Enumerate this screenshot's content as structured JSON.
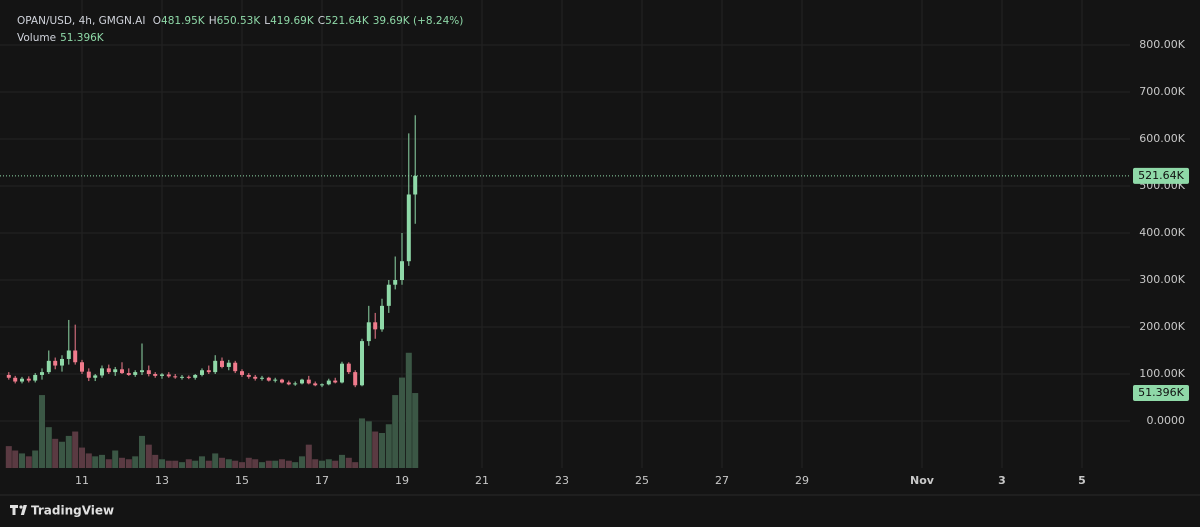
{
  "chart_data": {
    "type": "candlestick",
    "symbol": "OPAN/USD, 4h, GMGN.AI",
    "ohlc_legend": [
      {
        "key": "O",
        "value": "481.95K"
      },
      {
        "key": "H",
        "value": "650.53K"
      },
      {
        "key": "L",
        "value": "419.69K"
      },
      {
        "key": "C",
        "value": "521.64K"
      }
    ],
    "change_label": "39.69K (+8.24%)",
    "volume_title": "Volume",
    "volume_label": "51.396K",
    "last_price_label": "521.64K",
    "brand": "TradingView",
    "up_color": "#8fd9a8",
    "down_color": "#f07b8c",
    "volume_up_color": "#3b5745",
    "volume_down_color": "#5a3a42",
    "grid": true,
    "xlim": [
      8.95,
      37.2
    ],
    "xticks": [
      11,
      13,
      15,
      17,
      19,
      21,
      23,
      25,
      27,
      29,
      {
        "value": 32,
        "label": "Nov"
      },
      {
        "value": 34,
        "label": "3"
      },
      {
        "value": 36,
        "label": "5"
      }
    ],
    "ylim": [
      -100000,
      874500
    ],
    "yticks": [
      {
        "value": 0,
        "label": "0.0000"
      },
      {
        "value": 100000,
        "label": "100.00K"
      },
      {
        "value": 200000,
        "label": "200.00K"
      },
      {
        "value": 300000,
        "label": "300.00K"
      },
      {
        "value": 400000,
        "label": "400.00K"
      },
      {
        "value": 500000,
        "label": "500.00K"
      },
      {
        "value": 600000,
        "label": "600.00K"
      },
      {
        "value": 700000,
        "label": "700.00K"
      },
      {
        "value": 800000,
        "label": "800.00K"
      }
    ],
    "vlim": [
      0,
      314000
    ],
    "candles": {
      "x": [
        9.17,
        9.33,
        9.5,
        9.67,
        9.83,
        10,
        10.17,
        10.33,
        10.5,
        10.67,
        10.83,
        11,
        11.17,
        11.33,
        11.5,
        11.67,
        11.83,
        12,
        12.17,
        12.33,
        12.5,
        12.67,
        12.83,
        13,
        13.17,
        13.33,
        13.5,
        13.67,
        13.83,
        14,
        14.17,
        14.33,
        14.5,
        14.67,
        14.83,
        15,
        15.17,
        15.33,
        15.5,
        15.67,
        15.83,
        16,
        16.17,
        16.33,
        16.5,
        16.67,
        16.83,
        17,
        17.17,
        17.33,
        17.5,
        17.67,
        17.83,
        18,
        18.17,
        18.33,
        18.5,
        18.67,
        18.83,
        19,
        19.17,
        19.33
      ],
      "open": [
        98000,
        92000,
        84000,
        90000,
        86000,
        98000,
        104000,
        128000,
        118000,
        132000,
        150000,
        125000,
        105000,
        92000,
        97000,
        112000,
        104000,
        110000,
        102000,
        98000,
        104000,
        108000,
        100000,
        96000,
        99000,
        95000,
        93000,
        94000,
        92000,
        98000,
        108000,
        104000,
        128000,
        115000,
        124000,
        106000,
        98000,
        94000,
        90000,
        92000,
        86000,
        88000,
        82000,
        78000,
        80000,
        88000,
        80000,
        76000,
        78000,
        86000,
        82000,
        122000,
        104000,
        76000,
        170000,
        210000,
        195000,
        245000,
        290000,
        300000,
        340000,
        481950
      ],
      "high": [
        104000,
        96000,
        94000,
        95000,
        102000,
        112000,
        150000,
        135000,
        140000,
        215000,
        205000,
        130000,
        112000,
        100000,
        118000,
        120000,
        115000,
        125000,
        112000,
        108000,
        165000,
        118000,
        104000,
        102000,
        104000,
        100000,
        98000,
        97000,
        100000,
        112000,
        118000,
        140000,
        135000,
        130000,
        128000,
        110000,
        102000,
        98000,
        96000,
        94000,
        92000,
        90000,
        86000,
        84000,
        90000,
        96000,
        84000,
        80000,
        90000,
        92000,
        126000,
        125000,
        108000,
        175000,
        245000,
        230000,
        260000,
        300000,
        350000,
        400000,
        612000,
        650530
      ],
      "low": [
        88000,
        80000,
        80000,
        82000,
        82000,
        88000,
        100000,
        110000,
        105000,
        120000,
        120000,
        100000,
        85000,
        85000,
        92000,
        100000,
        96000,
        100000,
        96000,
        94000,
        98000,
        95000,
        92000,
        90000,
        92000,
        90000,
        88000,
        89000,
        88000,
        95000,
        100000,
        100000,
        112000,
        108000,
        102000,
        94000,
        90000,
        86000,
        86000,
        84000,
        82000,
        80000,
        76000,
        75000,
        78000,
        78000,
        74000,
        72000,
        76000,
        80000,
        80000,
        100000,
        72000,
        74000,
        160000,
        175000,
        190000,
        230000,
        280000,
        290000,
        330000,
        419690
      ],
      "close": [
        92000,
        84000,
        90000,
        86000,
        98000,
        104000,
        128000,
        118000,
        132000,
        150000,
        125000,
        105000,
        92000,
        97000,
        112000,
        104000,
        110000,
        102000,
        98000,
        104000,
        108000,
        100000,
        96000,
        99000,
        95000,
        93000,
        94000,
        92000,
        98000,
        108000,
        104000,
        128000,
        115000,
        124000,
        106000,
        98000,
        94000,
        90000,
        92000,
        86000,
        88000,
        82000,
        78000,
        80000,
        88000,
        80000,
        76000,
        78000,
        86000,
        82000,
        122000,
        104000,
        76000,
        170000,
        210000,
        195000,
        245000,
        290000,
        300000,
        340000,
        481950,
        521640
      ],
      "volume": [
        15000,
        12000,
        10000,
        8000,
        12000,
        50000,
        28000,
        20000,
        18000,
        22000,
        25000,
        14000,
        10000,
        8000,
        9000,
        6000,
        12000,
        7000,
        6000,
        8000,
        22000,
        16000,
        9000,
        6000,
        5000,
        5000,
        4000,
        6000,
        5000,
        8000,
        5000,
        10000,
        7000,
        6000,
        5000,
        4000,
        7000,
        6000,
        4000,
        5000,
        5000,
        6000,
        5000,
        4000,
        8000,
        16000,
        6000,
        5000,
        6000,
        5000,
        9000,
        7000,
        4000,
        34000,
        32000,
        25000,
        24000,
        30000,
        50000,
        62000,
        79000,
        51396
      ]
    }
  }
}
